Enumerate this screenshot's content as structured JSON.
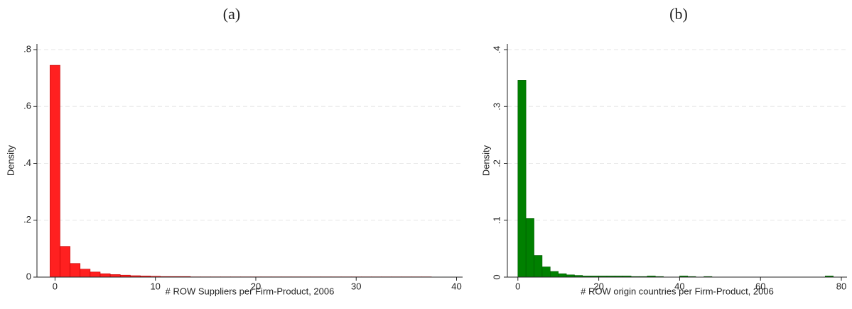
{
  "chart_data": [
    {
      "type": "histogram",
      "title": "(a)",
      "xlabel": "# ROW Suppliers per Firm-Product, 2006",
      "ylabel": "Density",
      "color": "#ff2020",
      "edge_color": "#c00000",
      "grid": true,
      "bins": [
        -0.5,
        0.5,
        1.5,
        2.5,
        3.5,
        4.5,
        5.5,
        6.5,
        7.5,
        8.5,
        9.5,
        10.5,
        11.5,
        12.5,
        13.5,
        14.5,
        15.5,
        16.5,
        17.5,
        18.5,
        19.5,
        20.5,
        21.5,
        22.5,
        23.5,
        24.5,
        25.5,
        26.5,
        27.5,
        28.5,
        29.5,
        30.5,
        31.5,
        32.5,
        33.5,
        34.5,
        35.5,
        36.5,
        37.5
      ],
      "values": [
        0.745,
        0.108,
        0.048,
        0.028,
        0.018,
        0.012,
        0.009,
        0.007,
        0.005,
        0.004,
        0.003,
        0.002,
        0.002,
        0.002,
        0.001,
        0.001,
        0.001,
        0.001,
        0.001,
        0.001,
        0.001,
        0.001,
        0.001,
        0.001,
        0.001,
        0.001,
        0.001,
        0.001,
        0.001,
        0.001,
        0.001,
        0.001,
        0.001,
        0.001,
        0.001,
        0.001,
        0.001,
        0.001
      ],
      "xlim": [
        -1.8,
        40.6
      ],
      "xticks": [
        0,
        10,
        20,
        30,
        40
      ],
      "ylim": [
        0,
        0.82
      ],
      "yticks": [
        0,
        {
          "value": 0.2,
          "label": ".2"
        },
        {
          "value": 0.4,
          "label": ".4"
        },
        {
          "value": 0.6,
          "label": ".6"
        },
        {
          "value": 0.8,
          "label": ".8"
        }
      ]
    },
    {
      "type": "histogram",
      "title": "(b)",
      "xlabel": "# ROW origin countries per Firm-Product, 2006",
      "ylabel": "Density",
      "color": "#008000",
      "edge_color": "#005a00",
      "grid": true,
      "bins": [
        0,
        2,
        4,
        6,
        8,
        10,
        12,
        14,
        16,
        18,
        20,
        22,
        24,
        26,
        28,
        30,
        32,
        34,
        36,
        38,
        40,
        42,
        44,
        46,
        48,
        50,
        52,
        54,
        56,
        58,
        60,
        62,
        64,
        66,
        68,
        70,
        72,
        74,
        76,
        78,
        80
      ],
      "values": [
        0.346,
        0.103,
        0.038,
        0.018,
        0.01,
        0.006,
        0.004,
        0.003,
        0.002,
        0.002,
        0.002,
        0.002,
        0.002,
        0.002,
        0.001,
        0.001,
        0.002,
        0.001,
        0,
        0,
        0.002,
        0.001,
        0,
        0.001,
        0,
        0,
        0,
        0,
        0,
        0,
        0,
        0,
        0,
        0,
        0,
        0,
        0,
        0,
        0.002,
        0
      ],
      "xlim": [
        -2.6,
        81.4
      ],
      "xticks": [
        0,
        20,
        40,
        60,
        80
      ],
      "ylim": [
        0,
        0.41
      ],
      "yticks": [
        0,
        {
          "value": 0.1,
          "label": ".1"
        },
        {
          "value": 0.2,
          "label": ".2"
        },
        {
          "value": 0.3,
          "label": ".3"
        },
        {
          "value": 0.4,
          "label": ".4"
        }
      ]
    }
  ]
}
